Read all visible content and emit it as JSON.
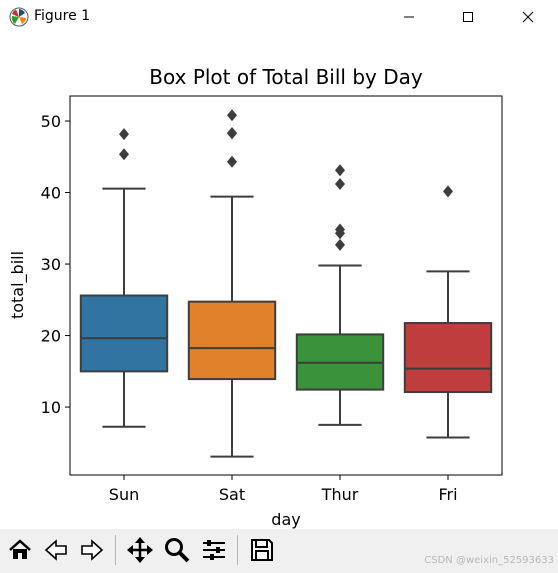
{
  "window": {
    "title": "Figure 1"
  },
  "toolbar": {
    "buttons": [
      {
        "name": "home-icon"
      },
      {
        "name": "back-icon"
      },
      {
        "name": "forward-icon"
      },
      {
        "name": "pan-icon"
      },
      {
        "name": "zoom-icon"
      },
      {
        "name": "configure-subplots-icon"
      },
      {
        "name": "save-icon"
      }
    ]
  },
  "watermark": "CSDN @weixin_52593633",
  "chart_data": {
    "type": "box",
    "title": "Box Plot of Total Bill by Day",
    "xlabel": "day",
    "ylabel": "total_bill",
    "ylim": [
      0.5,
      53.5
    ],
    "yticks": [
      10,
      20,
      30,
      40,
      50
    ],
    "grid": false,
    "categories": [
      "Sun",
      "Sat",
      "Thur",
      "Fri"
    ],
    "boxes": [
      {
        "category": "Sun",
        "whisker_low": 7.25,
        "q1": 14.99,
        "median": 19.63,
        "q3": 25.6,
        "whisker_high": 40.55,
        "outliers": [
          45.35,
          48.17
        ],
        "color": "#3274a1"
      },
      {
        "category": "Sat",
        "whisker_low": 3.07,
        "q1": 13.91,
        "median": 18.24,
        "q3": 24.74,
        "whisker_high": 39.42,
        "outliers": [
          44.3,
          48.27,
          48.33,
          50.81
        ],
        "color": "#e1812c"
      },
      {
        "category": "Thur",
        "whisker_low": 7.51,
        "q1": 12.44,
        "median": 16.2,
        "q3": 20.16,
        "whisker_high": 29.8,
        "outliers": [
          32.68,
          34.3,
          34.83,
          41.19,
          43.11
        ],
        "color": "#3a923a"
      },
      {
        "category": "Fri",
        "whisker_low": 5.75,
        "q1": 12.1,
        "median": 15.38,
        "q3": 21.75,
        "whisker_high": 28.97,
        "outliers": [
          40.17
        ],
        "color": "#c03d3e"
      }
    ]
  }
}
